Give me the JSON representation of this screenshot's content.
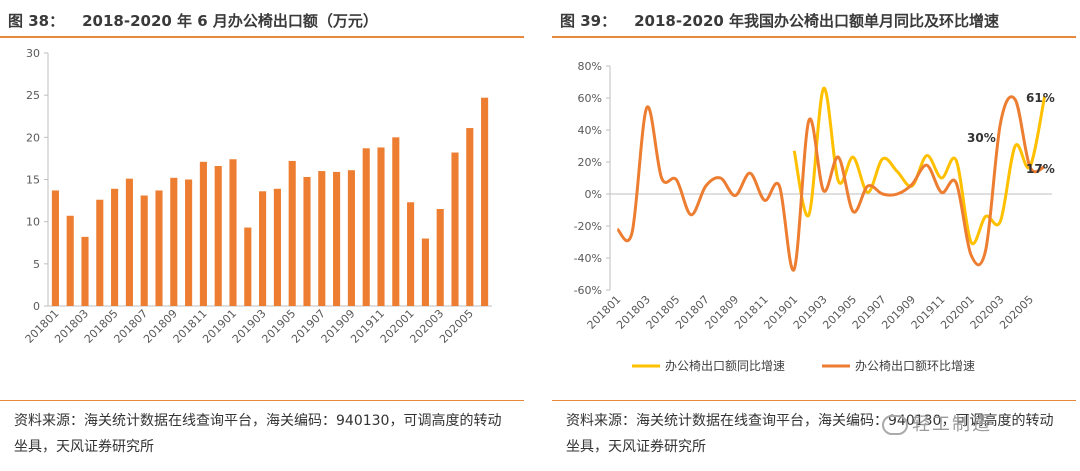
{
  "left": {
    "title_num": "图 38：",
    "title_text": "2018-2020 年 6 月办公椅出口额（万元）",
    "source": "资料来源：海关统计数据在线查询平台，海关编码：940130，可调高度的转动坐具，天风证券研究所",
    "bar_color": "#ed7d31"
  },
  "right": {
    "title_num": "图 39：",
    "title_text": "2018-2020 年我国办公椅出口额单月同比及环比增速",
    "source": "资料来源：海关统计数据在线查询平台，海关编码：940130，可调高度的转动坐具，天风证券研究所",
    "watermark": "轻工制造"
  },
  "chart_data": [
    {
      "type": "bar",
      "categories": [
        "201801",
        "201802",
        "201803",
        "201804",
        "201805",
        "201806",
        "201807",
        "201808",
        "201809",
        "201810",
        "201811",
        "201812",
        "201901",
        "201902",
        "201903",
        "201904",
        "201905",
        "201906",
        "201907",
        "201908",
        "201909",
        "201910",
        "201911",
        "201912",
        "202001",
        "202002",
        "202003",
        "202004",
        "202005",
        "202006"
      ],
      "tick_labels": [
        "201801",
        "201803",
        "201805",
        "201807",
        "201809",
        "201811",
        "201901",
        "201903",
        "201905",
        "201907",
        "201909",
        "201911",
        "202001",
        "202003",
        "202005"
      ],
      "values": [
        13.7,
        10.7,
        8.2,
        12.6,
        13.9,
        15.1,
        13.1,
        13.7,
        15.2,
        15.0,
        17.1,
        16.6,
        17.4,
        9.3,
        13.6,
        13.9,
        17.2,
        15.3,
        16.0,
        15.9,
        16.1,
        18.7,
        18.8,
        20.0,
        12.3,
        8.0,
        11.5,
        18.2,
        21.1,
        24.7
      ],
      "ylim": [
        0,
        30
      ],
      "yticks": [
        "0",
        "5",
        "10",
        "15",
        "20",
        "25",
        "30"
      ],
      "color": "#ed7d31"
    },
    {
      "type": "line",
      "categories": [
        "201801",
        "201802",
        "201803",
        "201804",
        "201805",
        "201806",
        "201807",
        "201808",
        "201809",
        "201810",
        "201811",
        "201812",
        "201901",
        "201902",
        "201903",
        "201904",
        "201905",
        "201906",
        "201907",
        "201908",
        "201909",
        "201910",
        "201911",
        "201912",
        "202001",
        "202002",
        "202003",
        "202004",
        "202005",
        "202006"
      ],
      "tick_labels": [
        "201801",
        "201803",
        "201805",
        "201807",
        "201809",
        "201811",
        "201901",
        "201903",
        "201905",
        "201907",
        "201909",
        "201911",
        "202001",
        "202003",
        "202005"
      ],
      "yticks": [
        "80%",
        "60%",
        "40%",
        "20%",
        "0%",
        "-20%",
        "-40%",
        "-60%"
      ],
      "ylim": [
        -0.6,
        0.8
      ],
      "series": [
        {
          "name": "办公椅出口额同比增速",
          "color": "#ffc000",
          "values": [
            null,
            null,
            null,
            null,
            null,
            null,
            null,
            null,
            null,
            null,
            null,
            null,
            0.27,
            -0.13,
            0.66,
            0.08,
            0.23,
            0.01,
            0.22,
            0.14,
            0.05,
            0.24,
            0.1,
            0.21,
            -0.3,
            -0.14,
            -0.17,
            0.3,
            0.17,
            0.61
          ]
        },
        {
          "name": "办公椅出口额环比增速",
          "color": "#ed7d31",
          "values": [
            -0.22,
            -0.24,
            0.54,
            0.1,
            0.09,
            -0.13,
            0.05,
            0.1,
            -0.01,
            0.13,
            -0.04,
            0.05,
            -0.47,
            0.46,
            0.02,
            0.23,
            -0.11,
            0.05,
            0.0,
            0.0,
            0.06,
            0.18,
            0.01,
            0.07,
            -0.38,
            -0.35,
            0.44,
            0.59,
            0.17,
            0.17
          ]
        }
      ],
      "annotations": [
        "61%",
        "30%",
        "17%"
      ]
    }
  ]
}
